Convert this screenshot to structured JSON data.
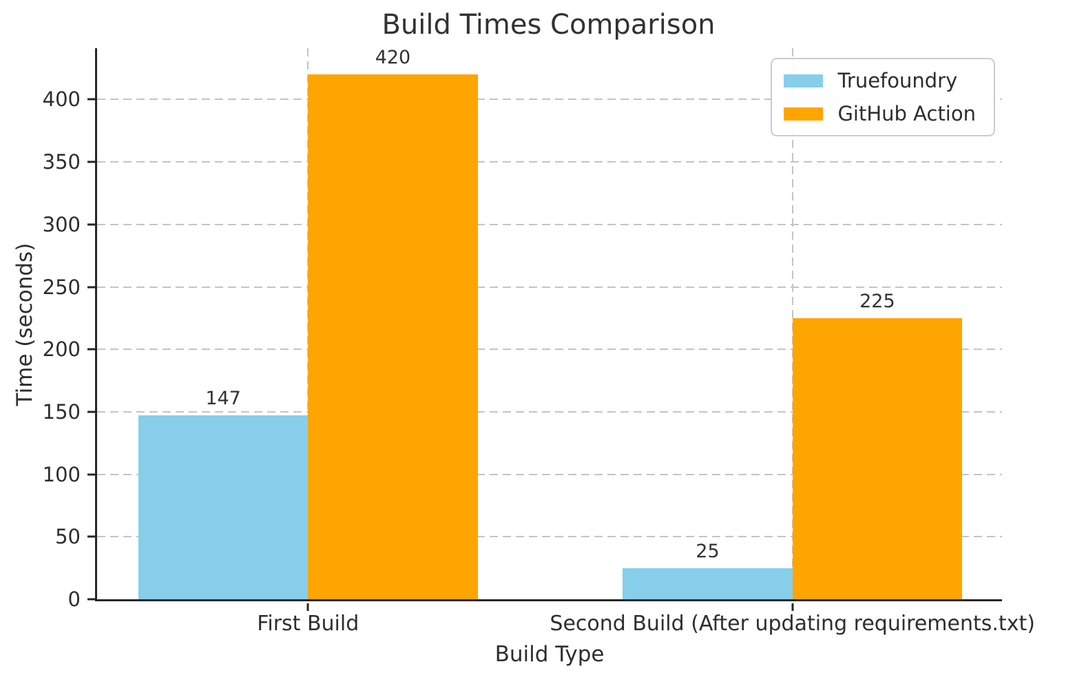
{
  "chart_data": {
    "type": "bar",
    "title": "Build Times Comparison",
    "xlabel": "Build Type",
    "ylabel": "Time (seconds)",
    "categories": [
      "First Build",
      "Second Build (After updating requirements.txt)"
    ],
    "series": [
      {
        "name": "Truefoundry",
        "color": "#87CEEB",
        "values": [
          147,
          25
        ]
      },
      {
        "name": "GitHub Action",
        "color": "#FFA500",
        "values": [
          420,
          225
        ]
      }
    ],
    "ylim": [
      0,
      441
    ],
    "yticks": [
      0,
      50,
      100,
      150,
      200,
      250,
      300,
      350,
      400
    ],
    "grid": true,
    "grid_style": "dashed",
    "legend_position": "upper right",
    "bar_value_labels_shown": true,
    "colors": {
      "spine": "#262626",
      "grid": "#c4c4c4",
      "text": "#2e2e2e"
    }
  }
}
